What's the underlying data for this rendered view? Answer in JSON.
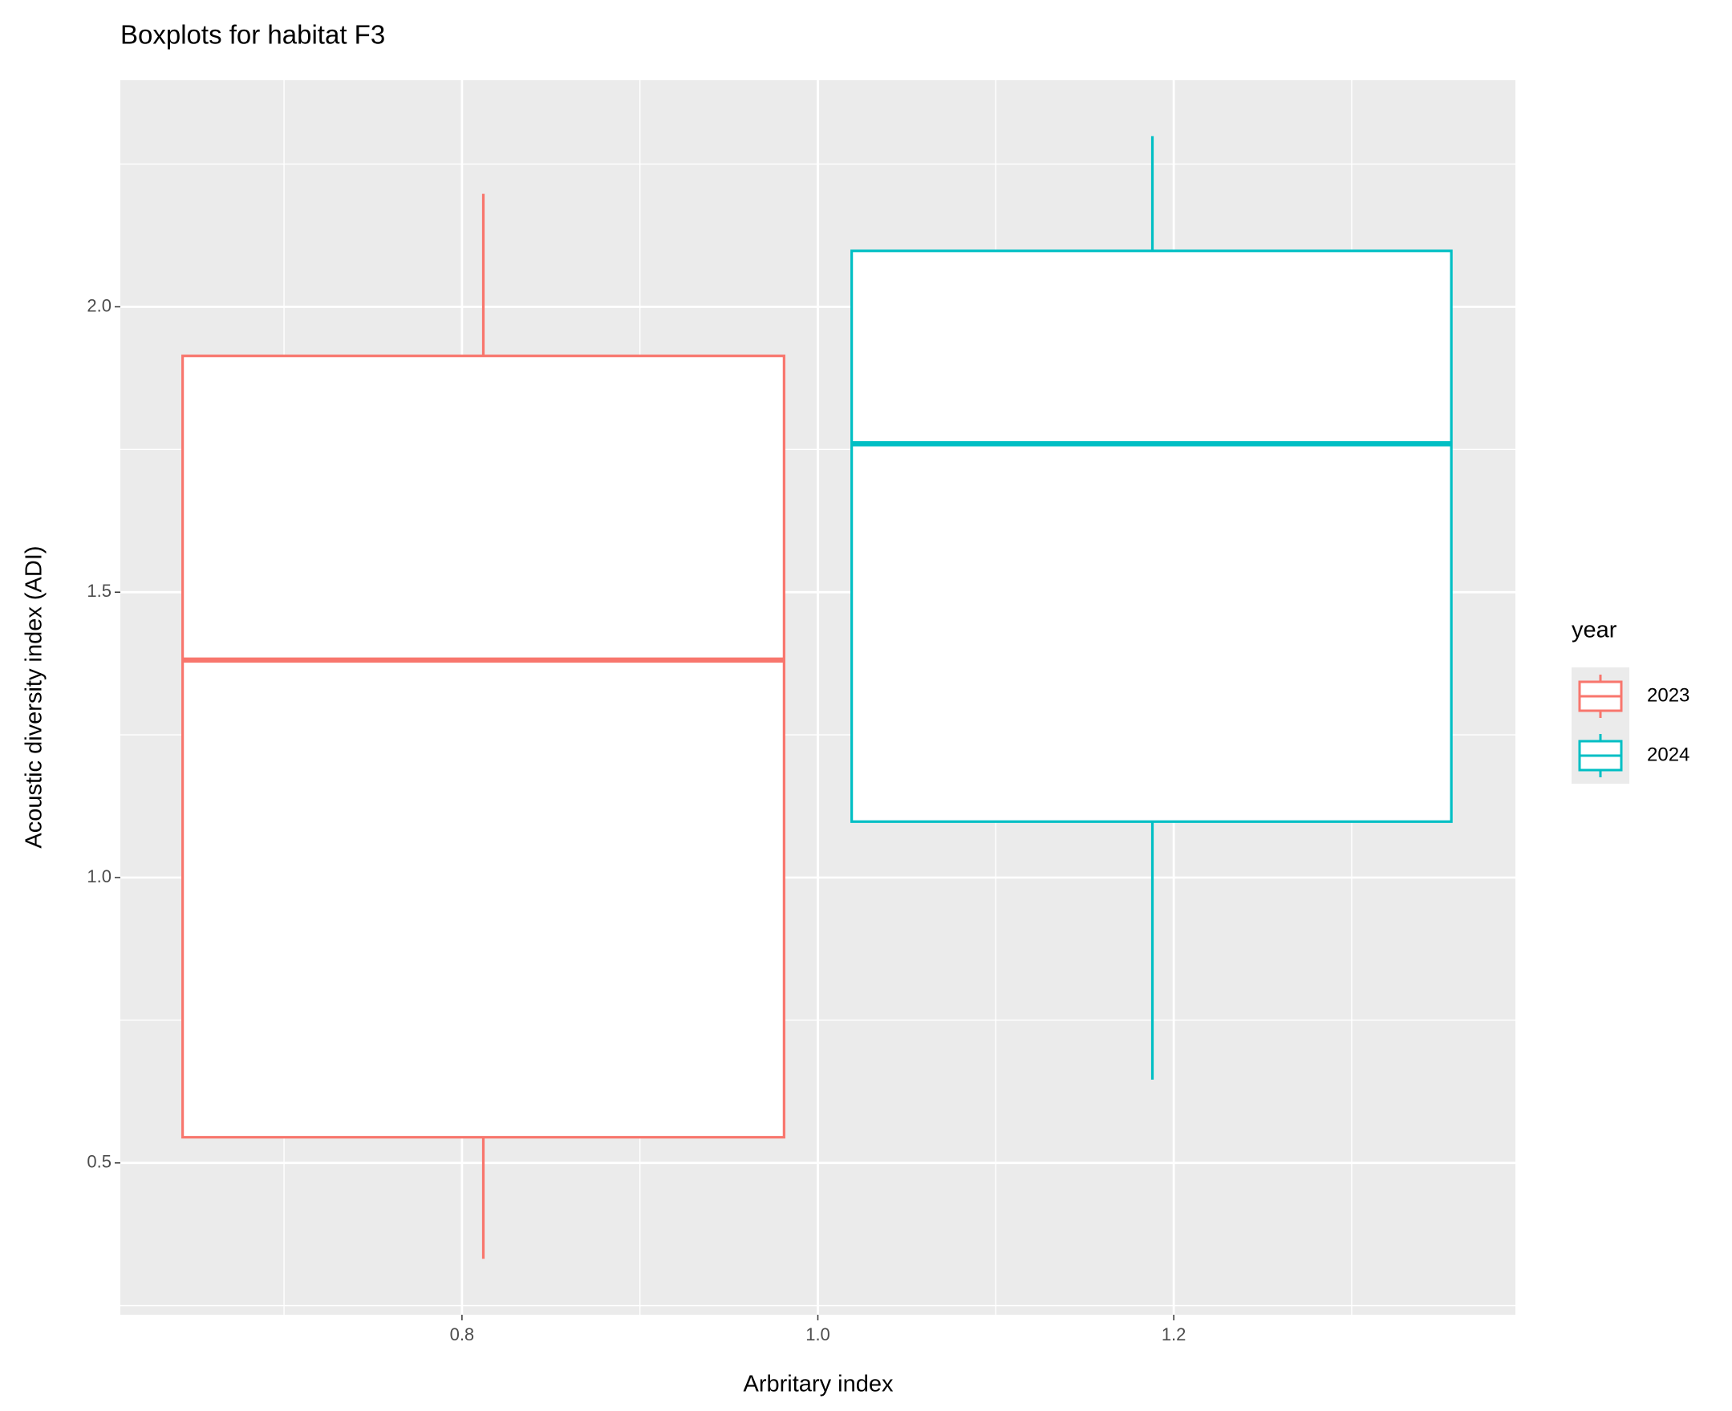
{
  "chart_data": {
    "type": "boxplot",
    "title": "Boxplots for habitat F3",
    "xlabel": "Arbritary index",
    "ylabel": "Acoustic diversity index (ADI)",
    "legend_title": "year",
    "legend_position": "right",
    "grid": true,
    "panel_color": "#ebebeb",
    "xlim": [
      0.608,
      1.392
    ],
    "xticks": [
      {
        "value": 0.8,
        "label": "0.8"
      },
      {
        "value": 1.0,
        "label": "1.0"
      },
      {
        "value": 1.2,
        "label": "1.2"
      }
    ],
    "ylim": [
      0.234,
      2.397
    ],
    "yticks": [
      0.5,
      {
        "value": 1.0,
        "label": "1.0"
      },
      1.5,
      {
        "value": 2.0,
        "label": "2.0"
      }
    ],
    "series": [
      {
        "name": "2023",
        "color": "#F8766D",
        "x": 0.812,
        "x_left": 0.643,
        "x_right": 0.981,
        "whisker_low": 0.332,
        "q1": 0.545,
        "median": 1.381,
        "q3": 1.914,
        "whisker_high": 2.198
      },
      {
        "name": "2024",
        "color": "#00BFC4",
        "x": 1.188,
        "x_left": 1.019,
        "x_right": 1.356,
        "whisker_low": 0.646,
        "q1": 1.098,
        "median": 1.76,
        "q3": 2.098,
        "whisker_high": 2.299
      }
    ]
  }
}
